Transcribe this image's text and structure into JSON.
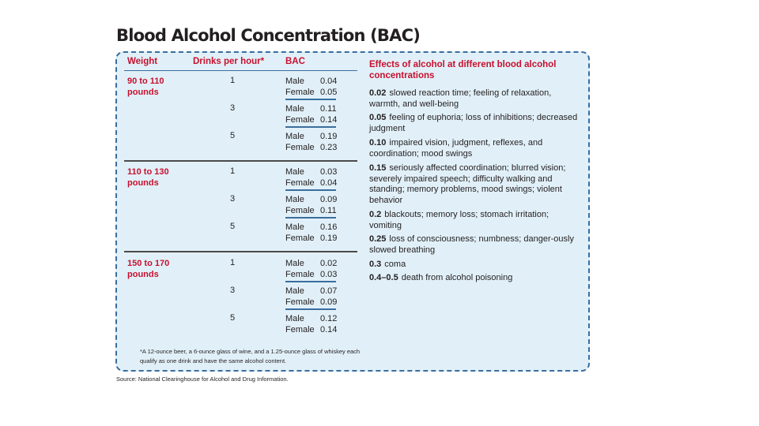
{
  "title": "Blood Alcohol Concentration (BAC)",
  "table": {
    "headers": {
      "weight": "Weight",
      "drinks": "Drinks per hour*",
      "bac": "BAC"
    },
    "groups": [
      {
        "weight": "90 to 110 pounds",
        "rows": [
          {
            "drinks": "1",
            "male_label": "Male",
            "male": "0.04",
            "female_label": "Female",
            "female": "0.05"
          },
          {
            "drinks": "3",
            "male_label": "Male",
            "male": "0.11",
            "female_label": "Female",
            "female": "0.14"
          },
          {
            "drinks": "5",
            "male_label": "Male",
            "male": "0.19",
            "female_label": "Female",
            "female": "0.23"
          }
        ]
      },
      {
        "weight": "110 to 130 pounds",
        "rows": [
          {
            "drinks": "1",
            "male_label": "Male",
            "male": "0.03",
            "female_label": "Female",
            "female": "0.04"
          },
          {
            "drinks": "3",
            "male_label": "Male",
            "male": "0.09",
            "female_label": "Female",
            "female": "0.11"
          },
          {
            "drinks": "5",
            "male_label": "Male",
            "male": "0.16",
            "female_label": "Female",
            "female": "0.19"
          }
        ]
      },
      {
        "weight": "150 to 170 pounds",
        "rows": [
          {
            "drinks": "1",
            "male_label": "Male",
            "male": "0.02",
            "female_label": "Female",
            "female": "0.03"
          },
          {
            "drinks": "3",
            "male_label": "Male",
            "male": "0.07",
            "female_label": "Female",
            "female": "0.09"
          },
          {
            "drinks": "5",
            "male_label": "Male",
            "male": "0.12",
            "female_label": "Female",
            "female": "0.14"
          }
        ]
      }
    ]
  },
  "effects": {
    "title": "Effects of alcohol at different blood alcohol concentrations",
    "items": [
      {
        "level": "0.02",
        "text": "slowed reaction time; feeling of relaxation, warmth, and well-being"
      },
      {
        "level": "0.05",
        "text": "feeling of euphoria; loss of inhibitions; decreased judgment"
      },
      {
        "level": "0.10",
        "text": "impaired vision, judgment, reflexes, and coordination; mood swings"
      },
      {
        "level": "0.15",
        "text": "seriously affected coordination; blurred vision; severely impaired speech; difficulty walking and standing; memory problems, mood swings; violent behavior"
      },
      {
        "level": "0.2",
        "text": "blackouts; memory loss; stomach irritation; vomiting"
      },
      {
        "level": "0.25",
        "text": "loss of consciousness; numbness; danger-ously slowed breathing"
      },
      {
        "level": "0.3",
        "text": "coma"
      },
      {
        "level": "0.4–0.5",
        "text": "death from alcohol poisoning"
      }
    ]
  },
  "footnote": "*A 12-ounce beer, a 6-ounce glass of wine, and a 1.25-ounce glass of whiskey each qualify as one drink and have the same alcohol content.",
  "source": "Source: National Clearinghouse for Alcohol and Drug Information.",
  "colors": {
    "accent_red": "#c8102e",
    "panel_bg": "#e1f0f8",
    "border_blue": "#3a6e9e"
  }
}
